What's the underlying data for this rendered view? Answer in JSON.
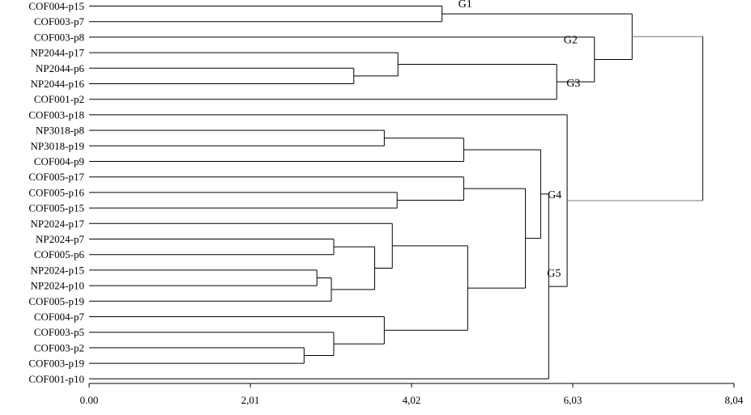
{
  "chart_data": {
    "type": "dendrogram",
    "orientation": "horizontal",
    "xlim": [
      0,
      8.04
    ],
    "ticks": [
      "0.00",
      "2,01",
      "4,02",
      "6,03",
      "8,04"
    ],
    "tick_values": [
      0,
      2.01,
      4.02,
      6.03,
      8.04
    ],
    "leaves": [
      "COF004-p15",
      "COF003-p7",
      "COF003-p8",
      "NP2044-p17",
      "NP2044-p6",
      "NP2044-p16",
      "COF001-p2",
      "COF003-p18",
      "NP3018-p8",
      "NP3018-p19",
      "COF004-p9",
      "COF005-p17",
      "COF005-p16",
      "COF005-p15",
      "NP2024-p17",
      "NP2024-p7",
      "COF005-p6",
      "NP2024-p15",
      "NP2024-p10",
      "COF005-p19",
      "COF004-p7",
      "COF003-p5",
      "COF003-p2",
      "COF003-p19",
      "COF001-p10"
    ],
    "merges": [
      {
        "id": "m1",
        "children": [
          "L0",
          "L1"
        ],
        "height": 4.4
      },
      {
        "id": "m2",
        "children": [
          "L4",
          "L5"
        ],
        "height": 3.3
      },
      {
        "id": "m3",
        "children": [
          "L3",
          "m2"
        ],
        "height": 3.85
      },
      {
        "id": "m4",
        "children": [
          "m3",
          "L6"
        ],
        "height": 5.83
      },
      {
        "id": "m5",
        "children": [
          "L2",
          "m4"
        ],
        "height": 6.3
      },
      {
        "id": "m6",
        "children": [
          "m1",
          "m5"
        ],
        "height": 6.77
      },
      {
        "id": "m7",
        "children": [
          "L8",
          "L9"
        ],
        "height": 3.68
      },
      {
        "id": "m8",
        "children": [
          "m7",
          "L10"
        ],
        "height": 4.67
      },
      {
        "id": "m9",
        "children": [
          "L12",
          "L13"
        ],
        "height": 3.84
      },
      {
        "id": "m10",
        "children": [
          "L11",
          "m9"
        ],
        "height": 4.67
      },
      {
        "id": "m11",
        "children": [
          "L15",
          "L16"
        ],
        "height": 3.05
      },
      {
        "id": "m12",
        "children": [
          "L17",
          "L18"
        ],
        "height": 2.84
      },
      {
        "id": "m13",
        "children": [
          "m12",
          "L19"
        ],
        "height": 3.02
      },
      {
        "id": "m14",
        "children": [
          "m11",
          "m13"
        ],
        "height": 3.56
      },
      {
        "id": "m15",
        "children": [
          "L14",
          "m14"
        ],
        "height": 3.78
      },
      {
        "id": "m16",
        "children": [
          "L22",
          "L23"
        ],
        "height": 2.68
      },
      {
        "id": "m17",
        "children": [
          "L21",
          "m16"
        ],
        "height": 3.05
      },
      {
        "id": "m18",
        "children": [
          "L20",
          "m17"
        ],
        "height": 3.68
      },
      {
        "id": "m19",
        "children": [
          "m15",
          "m18"
        ],
        "height": 4.72
      },
      {
        "id": "m20",
        "children": [
          "m10",
          "m19"
        ],
        "height": 5.44
      },
      {
        "id": "m21",
        "children": [
          "m8",
          "m20"
        ],
        "height": 5.63
      },
      {
        "id": "m22",
        "children": [
          "m21",
          "L24"
        ],
        "height": 5.73
      },
      {
        "id": "m23",
        "children": [
          "L7",
          "m22"
        ],
        "height": 5.96
      },
      {
        "id": "m24",
        "children": [
          "m6",
          "m23"
        ],
        "height": 7.65
      }
    ],
    "group_labels": [
      {
        "text": "G1",
        "merge": "m1"
      },
      {
        "text": "G2",
        "merge": "m5"
      },
      {
        "text": "G3",
        "merge": "m4"
      },
      {
        "text": "G4",
        "merge": "m23"
      },
      {
        "text": "G5",
        "merge": "m22"
      }
    ]
  }
}
